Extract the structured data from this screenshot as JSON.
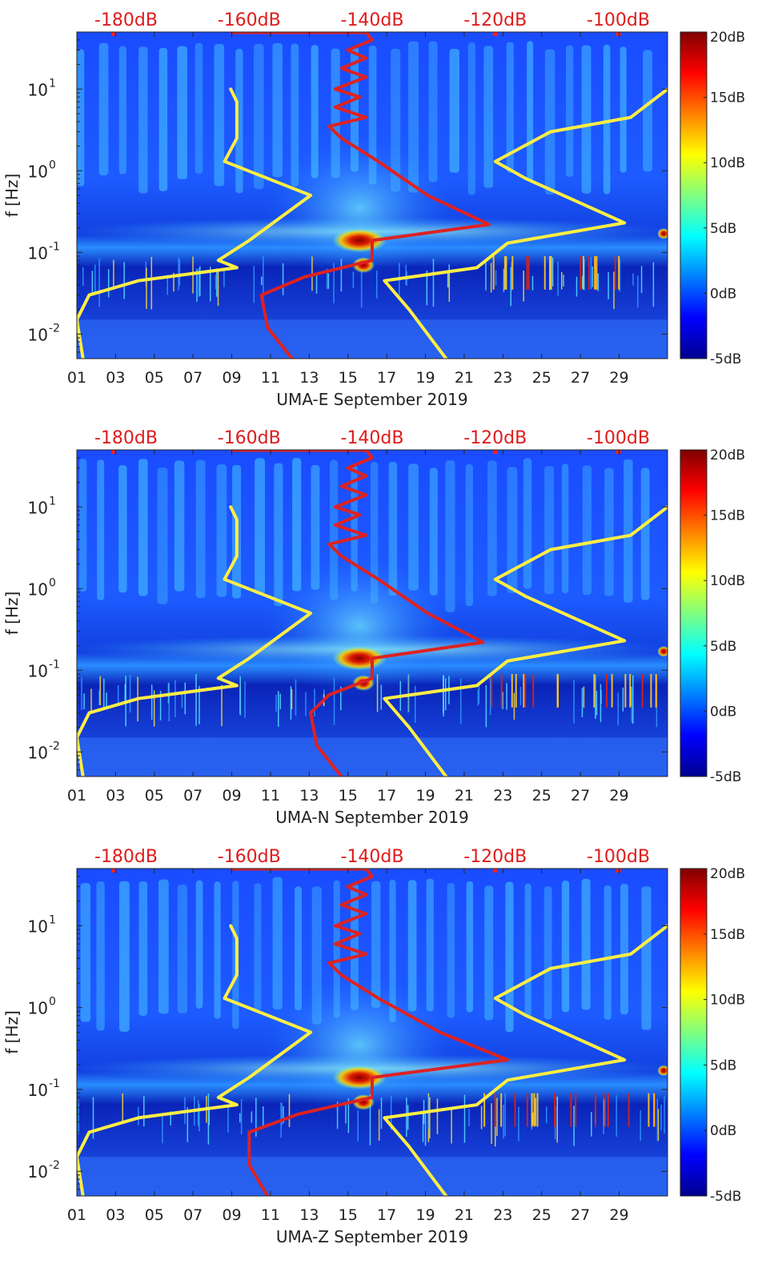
{
  "chart_data": [
    {
      "type": "spectrogram",
      "station": "UMA-E",
      "xlabel": "UMA-E September 2019",
      "ylabel": "f [Hz]",
      "x_ticks": [
        "01",
        "03",
        "05",
        "07",
        "09",
        "11",
        "13",
        "15",
        "17",
        "19",
        "21",
        "23",
        "25",
        "27",
        "29"
      ],
      "xlim": [
        1,
        31.5
      ],
      "y_ticks": [
        {
          "label": "10",
          "exp": "-2",
          "value": 0.01
        },
        {
          "label": "10",
          "exp": "-1",
          "value": 0.1
        },
        {
          "label": "10",
          "exp": "0",
          "value": 1
        },
        {
          "label": "10",
          "exp": "1",
          "value": 10
        }
      ],
      "ylim": [
        0.005,
        50
      ],
      "top_ticks": [
        "-180dB",
        "-160dB",
        "-140dB",
        "-120dB",
        "-100dB"
      ],
      "top_range": [
        -188,
        -92
      ],
      "colorbar": {
        "min": -5,
        "max": 20,
        "ticks": [
          "20dB",
          "15dB",
          "10dB",
          "5dB",
          "0dB",
          "-5dB"
        ],
        "values": [
          20,
          15,
          10,
          5,
          0,
          -5
        ]
      },
      "series": [
        {
          "name": "yellow noise model (low)",
          "color": "#ffee44",
          "points": [
            [
              -187,
              0.005
            ],
            [
              -188,
              0.015
            ],
            [
              -186,
              0.03
            ],
            [
              -178,
              0.045
            ],
            [
              -162,
              0.065
            ],
            [
              -165,
              0.08
            ],
            [
              -160,
              0.14
            ],
            [
              -150,
              0.5
            ],
            [
              -164,
              1.3
            ],
            [
              -162,
              2.5
            ],
            [
              -162,
              7.0
            ],
            [
              -163,
              10.0
            ]
          ]
        },
        {
          "name": "yellow noise model (high)",
          "color": "#ffee44",
          "points": [
            [
              -128,
              0.005
            ],
            [
              -134,
              0.02
            ],
            [
              -138,
              0.045
            ],
            [
              -123,
              0.065
            ],
            [
              -118,
              0.13
            ],
            [
              -99,
              0.23
            ],
            [
              -115,
              0.8
            ],
            [
              -120,
              1.3
            ],
            [
              -111,
              3.0
            ],
            [
              -98,
              4.5
            ],
            [
              -92,
              10.0
            ]
          ]
        },
        {
          "name": "red median PSD",
          "color": "#dd2222",
          "points": [
            [
              -153,
              0.005
            ],
            [
              -157,
              0.012
            ],
            [
              -158,
              0.03
            ],
            [
              -151,
              0.05
            ],
            [
              -140,
              0.08
            ],
            [
              -140,
              0.14
            ],
            [
              -121,
              0.22
            ],
            [
              -131,
              0.5
            ],
            [
              -139,
              1.3
            ],
            [
              -145,
              2.5
            ],
            [
              -147,
              3.5
            ],
            [
              -141,
              4.5
            ],
            [
              -146,
              6.0
            ],
            [
              -142,
              8.0
            ],
            [
              -146,
              10.0
            ],
            [
              -141,
              14.0
            ],
            [
              -145,
              18.0
            ],
            [
              -141,
              24.0
            ],
            [
              -144,
              30.0
            ],
            [
              -140,
              40.0
            ],
            [
              -141,
              50.0
            ]
          ]
        }
      ]
    },
    {
      "type": "spectrogram",
      "station": "UMA-N",
      "xlabel": "UMA-N September 2019",
      "ylabel": "f [Hz]",
      "x_ticks": [
        "01",
        "03",
        "05",
        "07",
        "09",
        "11",
        "13",
        "15",
        "17",
        "19",
        "21",
        "23",
        "25",
        "27",
        "29"
      ],
      "xlim": [
        1,
        31.5
      ],
      "y_ticks": [
        {
          "label": "10",
          "exp": "-2",
          "value": 0.01
        },
        {
          "label": "10",
          "exp": "-1",
          "value": 0.1
        },
        {
          "label": "10",
          "exp": "0",
          "value": 1
        },
        {
          "label": "10",
          "exp": "1",
          "value": 10
        }
      ],
      "ylim": [
        0.005,
        50
      ],
      "top_ticks": [
        "-180dB",
        "-160dB",
        "-140dB",
        "-120dB",
        "-100dB"
      ],
      "top_range": [
        -188,
        -92
      ],
      "colorbar": {
        "min": -5,
        "max": 20,
        "ticks": [
          "20dB",
          "15dB",
          "10dB",
          "5dB",
          "0dB",
          "-5dB"
        ],
        "values": [
          20,
          15,
          10,
          5,
          0,
          -5
        ]
      },
      "series": [
        {
          "name": "yellow noise model (low)",
          "color": "#ffee44",
          "points": [
            [
              -187,
              0.005
            ],
            [
              -188,
              0.015
            ],
            [
              -186,
              0.03
            ],
            [
              -178,
              0.045
            ],
            [
              -162,
              0.065
            ],
            [
              -165,
              0.08
            ],
            [
              -160,
              0.14
            ],
            [
              -150,
              0.5
            ],
            [
              -164,
              1.3
            ],
            [
              -162,
              2.5
            ],
            [
              -162,
              7.0
            ],
            [
              -163,
              10.0
            ]
          ]
        },
        {
          "name": "yellow noise model (high)",
          "color": "#ffee44",
          "points": [
            [
              -128,
              0.005
            ],
            [
              -134,
              0.02
            ],
            [
              -138,
              0.045
            ],
            [
              -123,
              0.065
            ],
            [
              -118,
              0.13
            ],
            [
              -99,
              0.23
            ],
            [
              -115,
              0.8
            ],
            [
              -120,
              1.3
            ],
            [
              -111,
              3.0
            ],
            [
              -98,
              4.5
            ],
            [
              -92,
              10.0
            ]
          ]
        },
        {
          "name": "red median PSD",
          "color": "#dd2222",
          "points": [
            [
              -145,
              0.005
            ],
            [
              -149,
              0.012
            ],
            [
              -150,
              0.03
            ],
            [
              -147,
              0.05
            ],
            [
              -140,
              0.08
            ],
            [
              -140,
              0.14
            ],
            [
              -122,
              0.22
            ],
            [
              -131,
              0.5
            ],
            [
              -139,
              1.3
            ],
            [
              -145,
              2.5
            ],
            [
              -147,
              3.5
            ],
            [
              -141,
              4.5
            ],
            [
              -146,
              6.0
            ],
            [
              -142,
              8.0
            ],
            [
              -146,
              10.0
            ],
            [
              -141,
              14.0
            ],
            [
              -145,
              18.0
            ],
            [
              -141,
              24.0
            ],
            [
              -144,
              30.0
            ],
            [
              -140,
              40.0
            ],
            [
              -141,
              50.0
            ]
          ]
        }
      ]
    },
    {
      "type": "spectrogram",
      "station": "UMA-Z",
      "xlabel": "UMA-Z September 2019",
      "ylabel": "f [Hz]",
      "x_ticks": [
        "01",
        "03",
        "05",
        "07",
        "09",
        "11",
        "13",
        "15",
        "17",
        "19",
        "21",
        "23",
        "25",
        "27",
        "29"
      ],
      "xlim": [
        1,
        31.5
      ],
      "y_ticks": [
        {
          "label": "10",
          "exp": "-2",
          "value": 0.01
        },
        {
          "label": "10",
          "exp": "-1",
          "value": 0.1
        },
        {
          "label": "10",
          "exp": "0",
          "value": 1
        },
        {
          "label": "10",
          "exp": "1",
          "value": 10
        }
      ],
      "ylim": [
        0.005,
        50
      ],
      "top_ticks": [
        "-180dB",
        "-160dB",
        "-140dB",
        "-120dB",
        "-100dB"
      ],
      "top_range": [
        -188,
        -92
      ],
      "colorbar": {
        "min": -5,
        "max": 20,
        "ticks": [
          "20dB",
          "15dB",
          "10dB",
          "5dB",
          "0dB",
          "-5dB"
        ],
        "values": [
          20,
          15,
          10,
          5,
          0,
          -5
        ]
      },
      "series": [
        {
          "name": "yellow noise model (low)",
          "color": "#ffee44",
          "points": [
            [
              -187,
              0.005
            ],
            [
              -188,
              0.015
            ],
            [
              -186,
              0.03
            ],
            [
              -178,
              0.045
            ],
            [
              -162,
              0.065
            ],
            [
              -165,
              0.08
            ],
            [
              -160,
              0.14
            ],
            [
              -150,
              0.5
            ],
            [
              -164,
              1.3
            ],
            [
              -162,
              2.5
            ],
            [
              -162,
              7.0
            ],
            [
              -163,
              10.0
            ]
          ]
        },
        {
          "name": "yellow noise model (high)",
          "color": "#ffee44",
          "points": [
            [
              -128,
              0.005
            ],
            [
              -134,
              0.02
            ],
            [
              -138,
              0.045
            ],
            [
              -123,
              0.065
            ],
            [
              -118,
              0.13
            ],
            [
              -99,
              0.23
            ],
            [
              -115,
              0.8
            ],
            [
              -120,
              1.3
            ],
            [
              -111,
              3.0
            ],
            [
              -98,
              4.5
            ],
            [
              -92,
              10.0
            ]
          ]
        },
        {
          "name": "red median PSD",
          "color": "#dd2222",
          "points": [
            [
              -157,
              0.005
            ],
            [
              -160,
              0.012
            ],
            [
              -160,
              0.03
            ],
            [
              -152,
              0.05
            ],
            [
              -140,
              0.08
            ],
            [
              -140,
              0.14
            ],
            [
              -118,
              0.23
            ],
            [
              -129,
              0.5
            ],
            [
              -139,
              1.3
            ],
            [
              -145,
              2.5
            ],
            [
              -147,
              3.5
            ],
            [
              -141,
              4.5
            ],
            [
              -146,
              6.0
            ],
            [
              -142,
              8.0
            ],
            [
              -146,
              10.0
            ],
            [
              -141,
              14.0
            ],
            [
              -145,
              18.0
            ],
            [
              -141,
              24.0
            ],
            [
              -144,
              30.0
            ],
            [
              -140,
              40.0
            ],
            [
              -141,
              50.0
            ]
          ]
        }
      ]
    }
  ]
}
